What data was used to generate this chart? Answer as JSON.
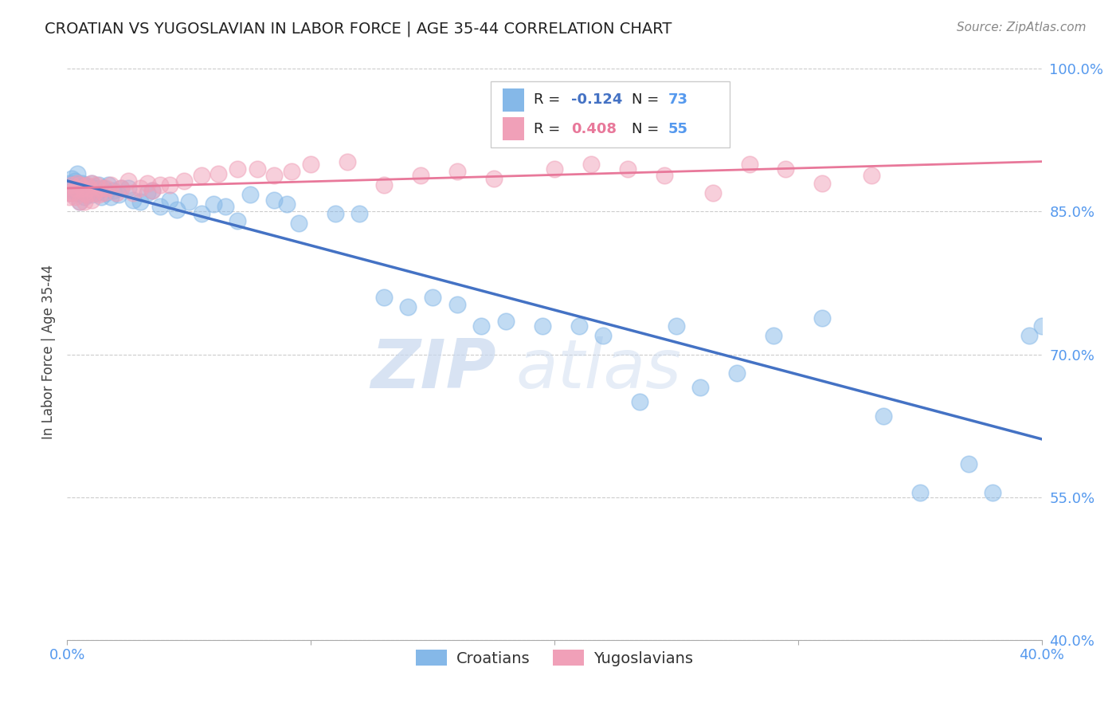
{
  "title": "CROATIAN VS YUGOSLAVIAN IN LABOR FORCE | AGE 35-44 CORRELATION CHART",
  "source": "Source: ZipAtlas.com",
  "ylabel": "In Labor Force | Age 35-44",
  "xlim": [
    0.0,
    0.4
  ],
  "ylim": [
    0.4,
    1.005
  ],
  "xticks": [
    0.0,
    0.1,
    0.2,
    0.3,
    0.4
  ],
  "xticklabels": [
    "0.0%",
    "",
    "",
    "",
    "40.0%"
  ],
  "ytick_positions": [
    1.0,
    0.85,
    0.7,
    0.55,
    0.4
  ],
  "yticklabels": [
    "100.0%",
    "85.0%",
    "70.0%",
    "55.0%",
    "40.0%"
  ],
  "grid_color": "#cccccc",
  "background_color": "#ffffff",
  "watermark_zip": "ZIP",
  "watermark_atlas": "atlas",
  "croatian_color": "#85B8E8",
  "yugoslavian_color": "#F0A0B8",
  "croatian_line_color": "#4472C4",
  "yugoslavian_line_color": "#E8789A",
  "tick_color": "#5599EE",
  "croatian_x": [
    0.001,
    0.001,
    0.001,
    0.002,
    0.002,
    0.002,
    0.003,
    0.003,
    0.004,
    0.004,
    0.004,
    0.005,
    0.005,
    0.006,
    0.006,
    0.007,
    0.007,
    0.008,
    0.008,
    0.009,
    0.01,
    0.01,
    0.011,
    0.012,
    0.013,
    0.014,
    0.015,
    0.016,
    0.017,
    0.018,
    0.019,
    0.021,
    0.022,
    0.025,
    0.027,
    0.03,
    0.033,
    0.035,
    0.038,
    0.042,
    0.045,
    0.05,
    0.055,
    0.06,
    0.065,
    0.07,
    0.075,
    0.085,
    0.09,
    0.095,
    0.11,
    0.12,
    0.13,
    0.14,
    0.15,
    0.16,
    0.17,
    0.18,
    0.195,
    0.21,
    0.22,
    0.235,
    0.25,
    0.26,
    0.275,
    0.29,
    0.31,
    0.335,
    0.35,
    0.37,
    0.38,
    0.395,
    0.4
  ],
  "croatian_y": [
    0.88,
    0.875,
    0.87,
    0.885,
    0.878,
    0.872,
    0.882,
    0.875,
    0.89,
    0.88,
    0.87,
    0.875,
    0.86,
    0.88,
    0.872,
    0.878,
    0.865,
    0.875,
    0.868,
    0.872,
    0.88,
    0.868,
    0.875,
    0.87,
    0.878,
    0.865,
    0.875,
    0.87,
    0.878,
    0.865,
    0.872,
    0.868,
    0.875,
    0.875,
    0.862,
    0.86,
    0.87,
    0.872,
    0.855,
    0.862,
    0.852,
    0.86,
    0.848,
    0.858,
    0.855,
    0.84,
    0.868,
    0.862,
    0.858,
    0.838,
    0.848,
    0.848,
    0.76,
    0.75,
    0.76,
    0.752,
    0.73,
    0.735,
    0.73,
    0.73,
    0.72,
    0.65,
    0.73,
    0.665,
    0.68,
    0.72,
    0.738,
    0.635,
    0.555,
    0.585,
    0.555,
    0.72,
    0.73
  ],
  "yugoslav_x": [
    0.001,
    0.001,
    0.002,
    0.002,
    0.003,
    0.003,
    0.004,
    0.005,
    0.005,
    0.006,
    0.007,
    0.007,
    0.008,
    0.008,
    0.009,
    0.01,
    0.01,
    0.011,
    0.012,
    0.013,
    0.014,
    0.015,
    0.016,
    0.018,
    0.02,
    0.022,
    0.025,
    0.027,
    0.03,
    0.033,
    0.035,
    0.038,
    0.042,
    0.048,
    0.055,
    0.062,
    0.07,
    0.078,
    0.085,
    0.092,
    0.1,
    0.115,
    0.13,
    0.145,
    0.16,
    0.175,
    0.2,
    0.215,
    0.23,
    0.245,
    0.265,
    0.28,
    0.295,
    0.31,
    0.33
  ],
  "yugoslav_y": [
    0.87,
    0.865,
    0.878,
    0.87,
    0.875,
    0.865,
    0.88,
    0.878,
    0.86,
    0.875,
    0.87,
    0.86,
    0.878,
    0.868,
    0.875,
    0.88,
    0.862,
    0.87,
    0.878,
    0.868,
    0.875,
    0.87,
    0.875,
    0.878,
    0.87,
    0.875,
    0.882,
    0.87,
    0.875,
    0.88,
    0.872,
    0.878,
    0.878,
    0.882,
    0.888,
    0.89,
    0.895,
    0.895,
    0.888,
    0.892,
    0.9,
    0.902,
    0.878,
    0.888,
    0.892,
    0.885,
    0.895,
    0.9,
    0.895,
    0.888,
    0.87,
    0.9,
    0.895,
    0.88,
    0.888
  ]
}
